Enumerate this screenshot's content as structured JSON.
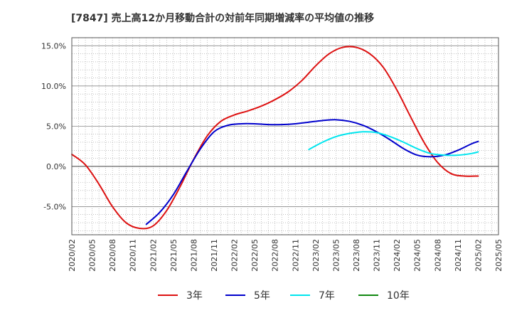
{
  "chart_data": {
    "type": "line",
    "title": "[7847]  売上高12か月移動合計の対前年同期増減率の平均値の推移",
    "xlabel": "",
    "ylabel": "",
    "x_ticks": [
      "2020/02",
      "2020/05",
      "2020/08",
      "2020/11",
      "2021/02",
      "2021/05",
      "2021/08",
      "2021/11",
      "2022/02",
      "2022/05",
      "2022/08",
      "2022/11",
      "2023/02",
      "2023/05",
      "2023/08",
      "2023/11",
      "2024/02",
      "2024/05",
      "2024/08",
      "2024/11",
      "2025/02",
      "2025/05"
    ],
    "y_ticks": [
      "15.0%",
      "10.0%",
      "5.0%",
      "0.0%",
      "-5.0%"
    ],
    "y_tick_values": [
      15,
      10,
      5,
      0,
      -5
    ],
    "ylim": [
      -8.5,
      16
    ],
    "grid": true,
    "legend_position": "bottom",
    "series": [
      {
        "name": "3年",
        "color": "#dd1111",
        "x": [
          "2020/02",
          "2020/04",
          "2020/06",
          "2020/08",
          "2020/10",
          "2020/12",
          "2021/02",
          "2021/04",
          "2021/06",
          "2021/08",
          "2021/10",
          "2021/12",
          "2022/02",
          "2022/04",
          "2022/06",
          "2022/08",
          "2022/10",
          "2022/12",
          "2023/02",
          "2023/04",
          "2023/06",
          "2023/08",
          "2023/10",
          "2023/12",
          "2024/02",
          "2024/04",
          "2024/06",
          "2024/08",
          "2024/10",
          "2024/12",
          "2025/02"
        ],
        "values": [
          1.5,
          0.2,
          -2.2,
          -5.0,
          -7.0,
          -7.7,
          -7.4,
          -5.5,
          -2.5,
          0.9,
          3.8,
          5.6,
          6.4,
          6.9,
          7.5,
          8.3,
          9.3,
          10.7,
          12.5,
          14.0,
          14.8,
          14.8,
          14.0,
          12.3,
          9.5,
          6.2,
          3.0,
          0.5,
          -0.9,
          -1.2,
          -1.2
        ]
      },
      {
        "name": "5年",
        "color": "#0000cc",
        "x": [
          "2021/01",
          "2021/03",
          "2021/05",
          "2021/07",
          "2021/09",
          "2021/11",
          "2022/01",
          "2022/03",
          "2022/05",
          "2022/07",
          "2022/09",
          "2022/11",
          "2023/01",
          "2023/03",
          "2023/05",
          "2023/07",
          "2023/09",
          "2023/11",
          "2024/01",
          "2024/03",
          "2024/05",
          "2024/07",
          "2024/09",
          "2024/11",
          "2025/01",
          "2025/02"
        ],
        "values": [
          -7.2,
          -5.7,
          -3.5,
          -0.6,
          2.2,
          4.3,
          5.1,
          5.3,
          5.3,
          5.2,
          5.2,
          5.3,
          5.5,
          5.7,
          5.8,
          5.6,
          5.1,
          4.3,
          3.3,
          2.2,
          1.4,
          1.2,
          1.4,
          2.0,
          2.8,
          3.1
        ]
      },
      {
        "name": "7年",
        "color": "#00e5ee",
        "x": [
          "2023/01",
          "2023/03",
          "2023/05",
          "2023/07",
          "2023/09",
          "2023/11",
          "2024/01",
          "2024/03",
          "2024/05",
          "2024/07",
          "2024/09",
          "2024/11",
          "2025/01",
          "2025/02"
        ],
        "values": [
          2.1,
          3.0,
          3.7,
          4.1,
          4.3,
          4.2,
          3.7,
          3.0,
          2.2,
          1.6,
          1.4,
          1.4,
          1.6,
          1.8
        ]
      },
      {
        "name": "10年",
        "color": "#118811",
        "x": [],
        "values": []
      }
    ]
  }
}
